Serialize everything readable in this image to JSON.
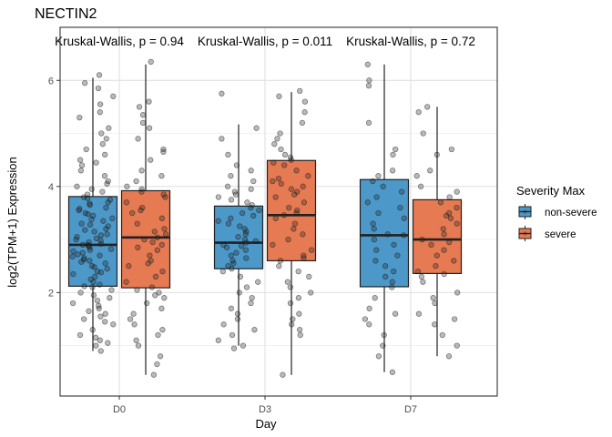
{
  "chart_data": {
    "type": "boxplot",
    "title": "NECTIN2",
    "xlabel": "Day",
    "ylabel": "log2(TPM+1) Expression",
    "categories": [
      "D0",
      "D3",
      "D7"
    ],
    "ylim": [
      0.05,
      7.0
    ],
    "yticks": [
      2,
      4,
      6
    ],
    "grid": true,
    "annotations": [
      "Kruskal-Wallis, p = 0.94",
      "Kruskal-Wallis, p = 0.011",
      "Kruskal-Wallis, p = 0.72"
    ],
    "legend": {
      "title": "Severity Max",
      "position": "right",
      "entries": [
        "non-severe",
        "severe"
      ]
    },
    "series": [
      {
        "name": "non-severe",
        "color": "#4C98C9",
        "boxes": [
          {
            "category": "D0",
            "q1": 2.12,
            "median": 2.9,
            "q3": 3.81,
            "whisker_low": 0.9,
            "whisker_high": 6.05
          },
          {
            "category": "D3",
            "q1": 2.45,
            "median": 2.94,
            "q3": 3.63,
            "whisker_low": 1.0,
            "whisker_high": 5.17
          },
          {
            "category": "D7",
            "q1": 2.11,
            "median": 3.08,
            "q3": 4.13,
            "whisker_low": 0.5,
            "whisker_high": 6.3
          }
        ]
      },
      {
        "name": "severe",
        "color": "#E67A52",
        "boxes": [
          {
            "category": "D0",
            "q1": 2.09,
            "median": 3.04,
            "q3": 3.92,
            "whisker_low": 0.45,
            "whisker_high": 6.3
          },
          {
            "category": "D3",
            "q1": 2.6,
            "median": 3.46,
            "q3": 4.49,
            "whisker_low": 0.45,
            "whisker_high": 5.78
          },
          {
            "category": "D7",
            "q1": 2.36,
            "median": 3.0,
            "q3": 3.75,
            "whisker_low": 0.8,
            "whisker_high": 5.5
          }
        ]
      }
    ],
    "points": {
      "non-severe": {
        "D0": [
          6.1,
          5.95,
          5.85,
          5.7,
          5.55,
          5.4,
          5.3,
          5.1,
          5.0,
          4.9,
          4.8,
          4.7,
          4.6,
          4.5,
          4.45,
          4.4,
          4.3,
          4.2,
          4.1,
          4.05,
          4.0,
          3.95,
          3.9,
          3.85,
          3.8,
          3.78,
          3.75,
          3.7,
          3.68,
          3.65,
          3.6,
          3.58,
          3.55,
          3.5,
          3.48,
          3.45,
          3.4,
          3.38,
          3.35,
          3.3,
          3.28,
          3.25,
          3.2,
          3.18,
          3.15,
          3.1,
          3.08,
          3.05,
          3.02,
          3.0,
          2.98,
          2.95,
          2.92,
          2.9,
          2.9,
          2.88,
          2.85,
          2.82,
          2.8,
          2.78,
          2.75,
          2.72,
          2.7,
          2.68,
          2.65,
          2.62,
          2.6,
          2.58,
          2.55,
          2.5,
          2.48,
          2.45,
          2.4,
          2.38,
          2.35,
          2.3,
          2.25,
          2.2,
          2.15,
          2.12,
          2.1,
          2.05,
          2.0,
          1.95,
          1.9,
          1.85,
          1.8,
          1.75,
          1.7,
          1.65,
          1.6,
          1.55,
          1.5,
          1.45,
          1.4,
          1.3,
          1.2,
          1.15,
          1.1,
          1.05,
          1.0,
          0.9
        ],
        "D3": [
          5.75,
          5.1,
          4.9,
          4.6,
          4.4,
          4.3,
          4.2,
          4.1,
          4.0,
          3.95,
          3.9,
          3.85,
          3.8,
          3.75,
          3.7,
          3.65,
          3.6,
          3.55,
          3.5,
          3.45,
          3.4,
          3.35,
          3.3,
          3.25,
          3.2,
          3.15,
          3.1,
          3.05,
          3.0,
          2.97,
          2.94,
          2.9,
          2.88,
          2.85,
          2.8,
          2.75,
          2.7,
          2.65,
          2.6,
          2.55,
          2.5,
          2.45,
          2.4,
          2.3,
          2.2,
          2.1,
          2.0,
          1.9,
          1.8,
          1.7,
          1.6,
          1.5,
          1.4,
          1.3,
          1.2,
          1.1,
          1.0,
          0.95
        ],
        "D7": [
          6.3,
          6.0,
          5.9,
          5.2,
          4.7,
          4.6,
          4.3,
          4.2,
          4.1,
          4.0,
          3.9,
          3.8,
          3.7,
          3.6,
          3.5,
          3.4,
          3.3,
          3.2,
          3.1,
          3.08,
          3.0,
          2.9,
          2.8,
          2.7,
          2.6,
          2.5,
          2.4,
          2.3,
          2.2,
          2.1,
          1.9,
          1.7,
          1.6,
          1.5,
          1.4,
          1.2,
          1.0,
          0.8,
          0.5
        ]
      },
      "severe": {
        "D0": [
          6.35,
          5.6,
          5.5,
          5.35,
          5.2,
          5.1,
          4.9,
          4.7,
          4.65,
          4.5,
          4.3,
          4.2,
          4.1,
          4.0,
          3.95,
          3.9,
          3.85,
          3.8,
          3.7,
          3.6,
          3.55,
          3.5,
          3.4,
          3.3,
          3.2,
          3.15,
          3.1,
          3.04,
          3.0,
          2.95,
          2.9,
          2.85,
          2.8,
          2.7,
          2.6,
          2.55,
          2.5,
          2.4,
          2.3,
          2.2,
          2.1,
          2.05,
          2.0,
          1.95,
          1.9,
          1.8,
          1.7,
          1.6,
          1.5,
          1.4,
          1.3,
          1.2,
          1.1,
          1.0,
          0.8,
          0.65,
          0.45
        ],
        "D3": [
          5.8,
          5.7,
          5.6,
          5.4,
          5.2,
          5.0,
          4.9,
          4.8,
          4.7,
          4.6,
          4.55,
          4.5,
          4.45,
          4.4,
          4.3,
          4.2,
          4.15,
          4.1,
          4.05,
          4.0,
          3.95,
          3.9,
          3.85,
          3.8,
          3.7,
          3.6,
          3.55,
          3.5,
          3.46,
          3.4,
          3.3,
          3.2,
          3.1,
          3.0,
          2.9,
          2.8,
          2.7,
          2.65,
          2.6,
          2.5,
          2.4,
          2.3,
          2.2,
          2.1,
          2.0,
          1.9,
          1.8,
          1.6,
          1.5,
          1.4,
          1.3,
          1.2,
          0.45
        ],
        "D7": [
          5.5,
          5.4,
          5.0,
          4.7,
          4.6,
          4.3,
          4.2,
          4.0,
          3.9,
          3.8,
          3.7,
          3.6,
          3.5,
          3.45,
          3.4,
          3.3,
          3.2,
          3.1,
          3.0,
          2.95,
          2.9,
          2.8,
          2.7,
          2.6,
          2.5,
          2.4,
          2.35,
          2.3,
          2.2,
          2.0,
          1.9,
          1.8,
          1.6,
          1.5,
          1.4,
          1.2,
          1.0,
          0.8
        ]
      }
    }
  }
}
